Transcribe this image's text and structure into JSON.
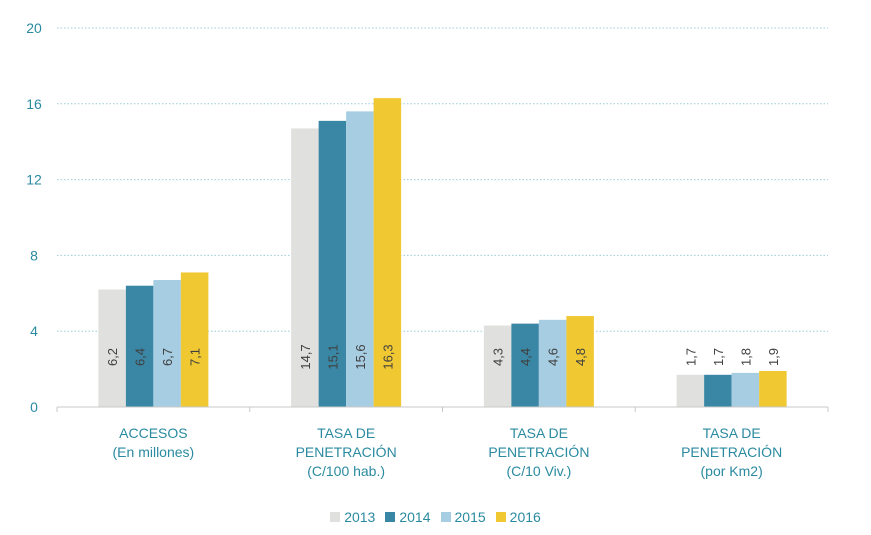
{
  "chart_data": {
    "type": "bar",
    "categories": [
      [
        "ACCESOS",
        "(En millones)"
      ],
      [
        "TASA DE",
        "PENETRACIÓN",
        "(C/100 hab.)"
      ],
      [
        "TASA DE",
        "PENETRACIÓN",
        "(C/10 Viv.)"
      ],
      [
        "TASA DE",
        "PENETRACIÓN",
        "(por Km2)"
      ]
    ],
    "series": [
      {
        "name": "2013",
        "color": "#e0e0de",
        "values": [
          6.2,
          14.7,
          4.3,
          1.7
        ],
        "labels": [
          "6,2",
          "14,7",
          "4,3",
          "1,7"
        ]
      },
      {
        "name": "2014",
        "color": "#3a87a5",
        "values": [
          6.4,
          15.1,
          4.4,
          1.7
        ],
        "labels": [
          "6,4",
          "15,1",
          "4,4",
          "1,7"
        ]
      },
      {
        "name": "2015",
        "color": "#a6cde2",
        "values": [
          6.7,
          15.6,
          4.6,
          1.8
        ],
        "labels": [
          "6,7",
          "15,6",
          "4,6",
          "1,8"
        ]
      },
      {
        "name": "2016",
        "color": "#f0c832",
        "values": [
          7.1,
          16.3,
          4.8,
          1.9
        ],
        "labels": [
          "7,1",
          "16,3",
          "4,8",
          "1,9"
        ]
      }
    ],
    "yticks": [
      "0",
      "4",
      "8",
      "12",
      "16",
      "20"
    ],
    "ylim": [
      0,
      20
    ],
    "grid": true,
    "legend": "bottom"
  }
}
